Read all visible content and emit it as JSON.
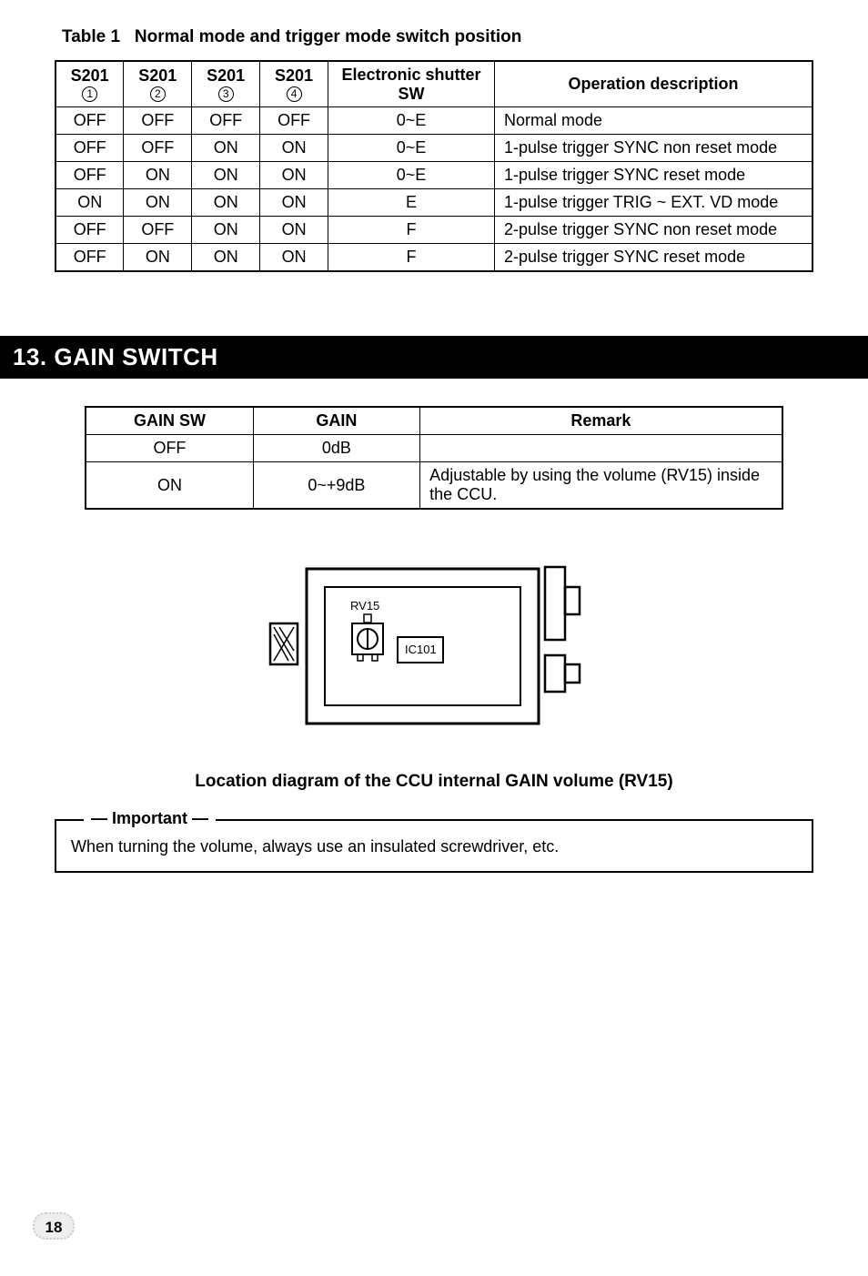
{
  "table1": {
    "caption_prefix": "Table 1",
    "caption_body": "Normal mode and trigger mode switch position",
    "headers": {
      "c1_top": "S201",
      "c1_sub": "1",
      "c2_top": "S201",
      "c2_sub": "2",
      "c3_top": "S201",
      "c3_sub": "3",
      "c4_top": "S201",
      "c4_sub": "4",
      "c5": "Electronic shutter SW",
      "c6": "Operation description"
    },
    "rows": [
      {
        "c1": "OFF",
        "c2": "OFF",
        "c3": "OFF",
        "c4": "OFF",
        "c5": "0~E",
        "c6": "Normal mode"
      },
      {
        "c1": "OFF",
        "c2": "OFF",
        "c3": "ON",
        "c4": "ON",
        "c5": "0~E",
        "c6": "1-pulse trigger SYNC non reset mode"
      },
      {
        "c1": "OFF",
        "c2": "ON",
        "c3": "ON",
        "c4": "ON",
        "c5": "0~E",
        "c6": "1-pulse trigger SYNC reset mode"
      },
      {
        "c1": "ON",
        "c2": "ON",
        "c3": "ON",
        "c4": "ON",
        "c5": "E",
        "c6": "1-pulse trigger TRIG ~ EXT. VD mode"
      },
      {
        "c1": "OFF",
        "c2": "OFF",
        "c3": "ON",
        "c4": "ON",
        "c5": "F",
        "c6": "2-pulse trigger SYNC non reset mode"
      },
      {
        "c1": "OFF",
        "c2": "ON",
        "c3": "ON",
        "c4": "ON",
        "c5": "F",
        "c6": "2-pulse trigger SYNC reset mode"
      }
    ]
  },
  "section13": {
    "title": "13. GAIN SWITCH"
  },
  "table2": {
    "headers": {
      "c1": "GAIN SW",
      "c2": "GAIN",
      "c3": "Remark"
    },
    "rows": [
      {
        "c1": "OFF",
        "c2": "0dB",
        "c3": ""
      },
      {
        "c1": "ON",
        "c2": "0~+9dB",
        "c3": "Adjustable by using the volume (RV15) inside the CCU."
      }
    ]
  },
  "diagram": {
    "rv_label": "RV15",
    "ic_label": "IC101",
    "caption": "Location diagram of the CCU internal GAIN volume (RV15)"
  },
  "important": {
    "label": "Important",
    "text": "When turning the volume, always use an insulated screwdriver, etc."
  },
  "page_number": "18",
  "col_widths": {
    "t1_c1": "9%",
    "t1_c2": "9%",
    "t1_c3": "9%",
    "t1_c4": "9%",
    "t1_c5": "22%",
    "t1_c6": "42%",
    "t2_c1": "24%",
    "t2_c2": "24%",
    "t2_c3": "52%"
  }
}
